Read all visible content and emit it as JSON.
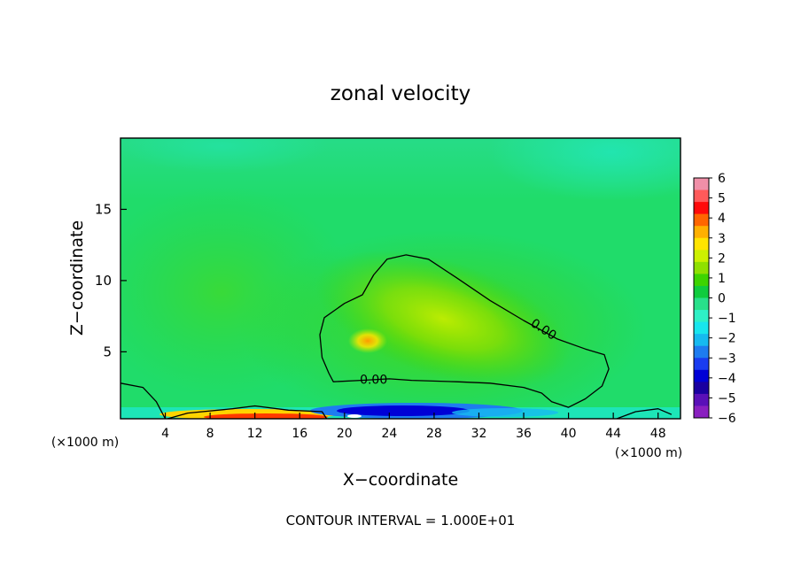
{
  "chart_data": {
    "type": "heatmap",
    "title": "zonal velocity",
    "xlabel": "X−coordinate",
    "ylabel": "Z−coordinate",
    "x_unit_left": "(×1000 m)",
    "x_unit_right": "(×1000 m)",
    "footer": "CONTOUR INTERVAL = 1.000E+01",
    "xlim": [
      0,
      50
    ],
    "ylim": [
      0.3,
      20
    ],
    "x_ticks": [
      4,
      8,
      12,
      16,
      20,
      24,
      28,
      32,
      36,
      40,
      44,
      48
    ],
    "y_ticks": [
      5,
      10,
      15
    ],
    "colorbar": {
      "range": [
        -6,
        6
      ],
      "ticks": [
        "6",
        "5",
        "4",
        "3",
        "2",
        "1",
        "0",
        "−1",
        "−2",
        "−3",
        "−4",
        "−5",
        "−6"
      ],
      "colors": [
        "#f08fa8",
        "#ff5a5a",
        "#ff0a0a",
        "#ff6600",
        "#ffb000",
        "#ffe400",
        "#ccf000",
        "#8fe000",
        "#3ed400",
        "#10cc3e",
        "#28e08a",
        "#2ef0c6",
        "#18e6ee",
        "#16baf0",
        "#1e7cf0",
        "#1a3cf0",
        "#0000d6",
        "#1a00a0",
        "#5a10b8",
        "#8a20c0"
      ]
    },
    "contours": [
      {
        "label": "0.00",
        "level": 0,
        "points": [
          [
            18.6,
            3.5
          ],
          [
            18.0,
            4.6
          ],
          [
            17.8,
            6.2
          ],
          [
            18.2,
            7.4
          ],
          [
            20.0,
            8.4
          ],
          [
            21.6,
            9.0
          ],
          [
            22.6,
            10.4
          ],
          [
            23.8,
            11.5
          ],
          [
            25.5,
            11.8
          ],
          [
            27.5,
            11.5
          ],
          [
            30.0,
            10.2
          ],
          [
            33.0,
            8.6
          ],
          [
            36.0,
            7.2
          ],
          [
            39.0,
            5.9
          ],
          [
            41.5,
            5.2
          ],
          [
            43.2,
            4.8
          ],
          [
            43.6,
            3.8
          ],
          [
            43.0,
            2.6
          ],
          [
            41.5,
            1.7
          ],
          [
            40.0,
            1.1
          ],
          [
            38.5,
            1.5
          ],
          [
            37.6,
            2.1
          ],
          [
            36.0,
            2.5
          ],
          [
            33.0,
            2.8
          ],
          [
            30.0,
            2.9
          ],
          [
            26.0,
            3.0
          ],
          [
            24.0,
            3.1
          ],
          [
            21.5,
            3.0
          ],
          [
            19.0,
            2.9
          ],
          [
            18.6,
            3.5
          ]
        ]
      },
      {
        "label": "",
        "level": 0,
        "points": [
          [
            0.0,
            2.8
          ],
          [
            2.0,
            2.5
          ],
          [
            3.2,
            1.5
          ],
          [
            3.8,
            0.6
          ],
          [
            4.0,
            0.3
          ]
        ]
      },
      {
        "label": "",
        "level": 0,
        "points": [
          [
            4.2,
            0.3
          ],
          [
            6.0,
            0.7
          ],
          [
            10.0,
            1.0
          ],
          [
            12.0,
            1.2
          ],
          [
            15.0,
            0.9
          ],
          [
            18.0,
            0.8
          ],
          [
            18.4,
            0.3
          ]
        ]
      },
      {
        "label": "",
        "level": 0,
        "points": [
          [
            44.3,
            0.3
          ],
          [
            46.0,
            0.8
          ],
          [
            48.0,
            1.0
          ],
          [
            49.2,
            0.6
          ]
        ]
      }
    ]
  }
}
